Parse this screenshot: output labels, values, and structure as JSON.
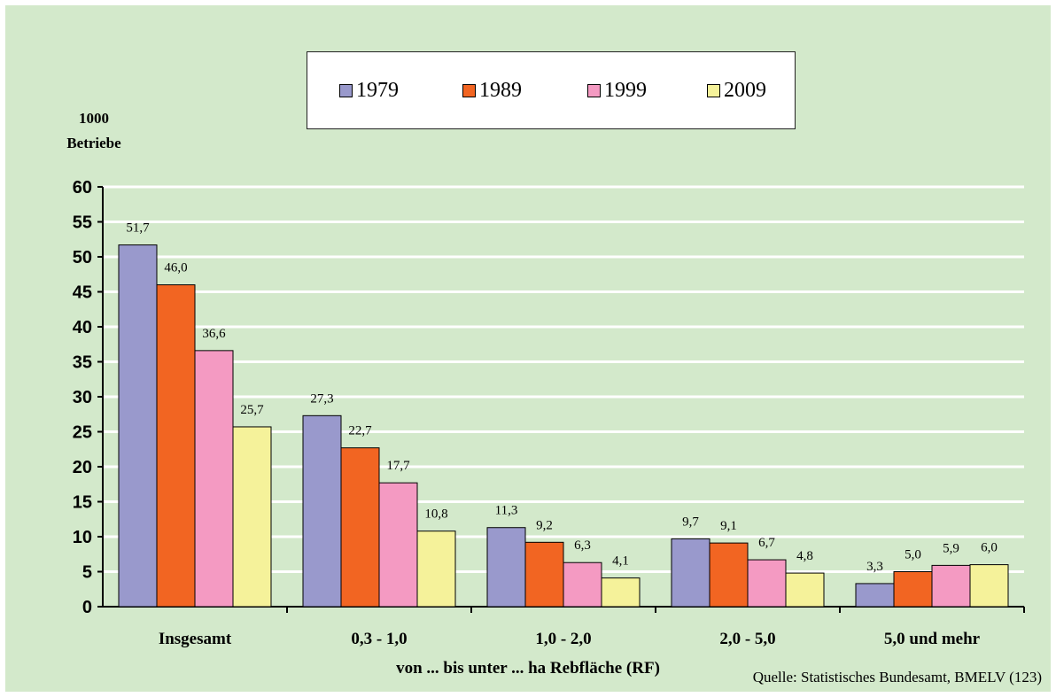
{
  "chart_data": {
    "type": "bar",
    "categories": [
      "Insgesamt",
      "0,3 - 1,0",
      "1,0 - 2,0",
      "2,0 - 5,0",
      "5,0 und mehr"
    ],
    "series": [
      {
        "name": "1979",
        "values": [
          51.7,
          27.3,
          11.3,
          9.7,
          3.3
        ],
        "labels": [
          "51,7",
          "27,3",
          "11,3",
          "9,7",
          "3,3"
        ],
        "color": "#9999cc"
      },
      {
        "name": "1989",
        "values": [
          46.0,
          22.7,
          9.2,
          9.1,
          5.0
        ],
        "labels": [
          "46,0",
          "22,7",
          "9,2",
          "9,1",
          "5,0"
        ],
        "color": "#f26522"
      },
      {
        "name": "1999",
        "values": [
          36.6,
          17.7,
          6.3,
          6.7,
          5.9
        ],
        "labels": [
          "36,6",
          "17,7",
          "6,3",
          "6,7",
          "5,9"
        ],
        "color": "#f49ac2"
      },
      {
        "name": "2009",
        "values": [
          25.7,
          10.8,
          4.1,
          4.8,
          6.0
        ],
        "labels": [
          "25,7",
          "10,8",
          "4,1",
          "4,8",
          "6,0"
        ],
        "color": "#f5f29a"
      }
    ],
    "ylim": [
      0,
      60
    ],
    "yticks": [
      0,
      5,
      10,
      15,
      20,
      25,
      30,
      35,
      40,
      45,
      50,
      55,
      60
    ],
    "ylabel_line1": "1000",
    "ylabel_line2": "Betriebe",
    "xlabel": "von ... bis unter ... ha Rebfläche (RF)",
    "grid": true,
    "legend_position": "top-center",
    "background": "#d3e9cb",
    "gridline_color": "#ffffff"
  },
  "source": "Quelle: Statistisches Bundesamt, BMELV (123)"
}
